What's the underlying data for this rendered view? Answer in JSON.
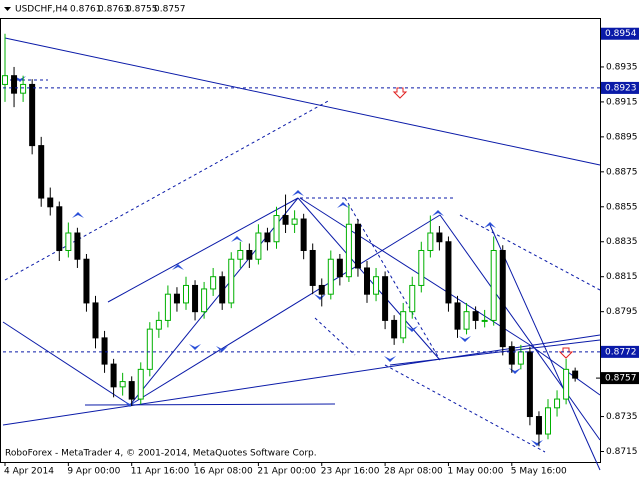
{
  "chart_data": {
    "type": "candlestick",
    "title": "USDCHF,H4",
    "footer": "RoboForex - MetaTrader 4, © 2001-2014, MetaQuotes Software Corp.",
    "up_color": "#00b000",
    "down_color": "#000000",
    "level_color": "#0a1aa8",
    "ylim": [
      0.8709,
      0.8963
    ],
    "yticks": [
      0.8935,
      0.8915,
      0.8895,
      0.8875,
      0.8855,
      0.8835,
      0.8815,
      0.8795,
      0.8735,
      0.8715
    ],
    "levels": [
      0.8954,
      0.8923,
      0.8772
    ],
    "categories": [
      "4 Apr 2014",
      null,
      null,
      null,
      null,
      null,
      null,
      "9 Apr 00:00",
      null,
      null,
      null,
      null,
      null,
      null,
      "11 Apr 16:00",
      null,
      null,
      null,
      null,
      null,
      null,
      "16 Apr 08:00",
      null,
      null,
      null,
      null,
      null,
      null,
      "21 Apr 00:00",
      null,
      null,
      null,
      null,
      null,
      null,
      "23 Apr 16:00",
      null,
      null,
      null,
      null,
      null,
      null,
      "28 Apr 08:00",
      null,
      null,
      null,
      null,
      null,
      null,
      "1 May 00:00",
      null,
      null,
      null,
      null,
      null,
      null,
      "5 May 16:00",
      null,
      null,
      null,
      null,
      null,
      null,
      null
    ],
    "ohlc": [
      [
        0.8925,
        0.8954,
        0.8915,
        0.893
      ],
      [
        0.893,
        0.8935,
        0.8912,
        0.892
      ],
      [
        0.892,
        0.893,
        0.8915,
        0.8925
      ],
      [
        0.8925,
        0.8928,
        0.8885,
        0.889
      ],
      [
        0.889,
        0.8895,
        0.8855,
        0.886
      ],
      [
        0.886,
        0.8866,
        0.885,
        0.8855
      ],
      [
        0.8855,
        0.8858,
        0.8824,
        0.883
      ],
      [
        0.883,
        0.8846,
        0.8826,
        0.884
      ],
      [
        0.884,
        0.8843,
        0.882,
        0.8825
      ],
      [
        0.8825,
        0.8828,
        0.8795,
        0.88
      ],
      [
        0.88,
        0.8804,
        0.8774,
        0.878
      ],
      [
        0.878,
        0.8784,
        0.876,
        0.8765
      ],
      [
        0.8765,
        0.8768,
        0.8746,
        0.8752
      ],
      [
        0.8752,
        0.876,
        0.8747,
        0.8755
      ],
      [
        0.8755,
        0.8758,
        0.8741,
        0.8745
      ],
      [
        0.8745,
        0.8766,
        0.8742,
        0.8762
      ],
      [
        0.8762,
        0.8789,
        0.8758,
        0.8785
      ],
      [
        0.8785,
        0.8795,
        0.878,
        0.879
      ],
      [
        0.879,
        0.881,
        0.8786,
        0.8805
      ],
      [
        0.8805,
        0.8809,
        0.8795,
        0.88
      ],
      [
        0.88,
        0.8815,
        0.8796,
        0.881
      ],
      [
        0.881,
        0.8813,
        0.879,
        0.8795
      ],
      [
        0.8795,
        0.8812,
        0.8791,
        0.8808
      ],
      [
        0.8808,
        0.882,
        0.8804,
        0.8815
      ],
      [
        0.8815,
        0.8818,
        0.8796,
        0.88
      ],
      [
        0.88,
        0.8829,
        0.8797,
        0.8825
      ],
      [
        0.8825,
        0.8835,
        0.882,
        0.883
      ],
      [
        0.883,
        0.8834,
        0.882,
        0.8825
      ],
      [
        0.8825,
        0.8845,
        0.8822,
        0.884
      ],
      [
        0.884,
        0.8843,
        0.883,
        0.8835
      ],
      [
        0.8835,
        0.8855,
        0.8831,
        0.885
      ],
      [
        0.885,
        0.8862,
        0.884,
        0.8845
      ],
      [
        0.8845,
        0.8853,
        0.884,
        0.8848
      ],
      [
        0.8848,
        0.8851,
        0.8825,
        0.883
      ],
      [
        0.883,
        0.8834,
        0.8805,
        0.881
      ],
      [
        0.881,
        0.8814,
        0.8798,
        0.8805
      ],
      [
        0.8805,
        0.883,
        0.8802,
        0.8825
      ],
      [
        0.8825,
        0.8828,
        0.881,
        0.8815
      ],
      [
        0.8815,
        0.8856,
        0.8812,
        0.8845
      ],
      [
        0.8845,
        0.8848,
        0.8815,
        0.882
      ],
      [
        0.882,
        0.8824,
        0.88,
        0.8805
      ],
      [
        0.8805,
        0.882,
        0.8801,
        0.8815
      ],
      [
        0.8815,
        0.8818,
        0.8785,
        0.879
      ],
      [
        0.879,
        0.8793,
        0.8776,
        0.878
      ],
      [
        0.878,
        0.88,
        0.8777,
        0.8795
      ],
      [
        0.8795,
        0.8815,
        0.8791,
        0.881
      ],
      [
        0.881,
        0.8835,
        0.8806,
        0.883
      ],
      [
        0.883,
        0.885,
        0.8826,
        0.884
      ],
      [
        0.884,
        0.8844,
        0.883,
        0.8835
      ],
      [
        0.8835,
        0.8838,
        0.8795,
        0.88
      ],
      [
        0.88,
        0.8804,
        0.878,
        0.8785
      ],
      [
        0.8785,
        0.88,
        0.8782,
        0.8795
      ],
      [
        0.8795,
        0.8798,
        0.8785,
        0.879
      ],
      [
        0.879,
        0.8796,
        0.8786,
        0.879
      ],
      [
        0.879,
        0.8838,
        0.8787,
        0.883
      ],
      [
        0.883,
        0.8833,
        0.877,
        0.8775
      ],
      [
        0.8775,
        0.8778,
        0.876,
        0.8765
      ],
      [
        0.8765,
        0.8776,
        0.8762,
        0.8772
      ],
      [
        0.8772,
        0.8775,
        0.873,
        0.8735
      ],
      [
        0.8735,
        0.8738,
        0.8718,
        0.8725
      ],
      [
        0.8725,
        0.8745,
        0.8722,
        0.874
      ],
      [
        0.874,
        0.875,
        0.8735,
        0.8745
      ],
      [
        0.8745,
        0.8768,
        0.8742,
        0.8762
      ],
      [
        0.8761,
        0.8763,
        0.8755,
        0.8757
      ]
    ]
  }
}
